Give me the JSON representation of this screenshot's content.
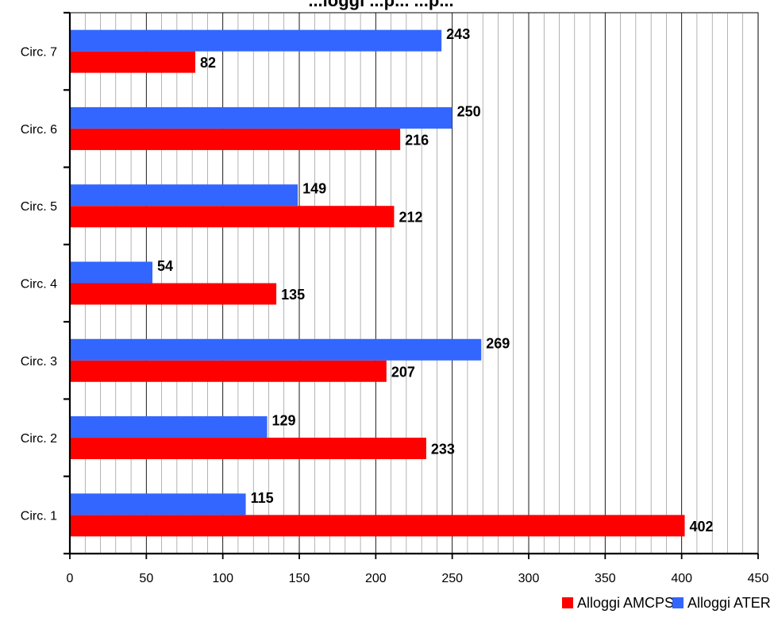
{
  "chart_data": {
    "type": "bar",
    "orientation": "horizontal",
    "title": "...loggi ...p... ...p...",
    "categories": [
      "Circ. 1",
      "Circ. 2",
      "Circ. 3",
      "Circ. 4",
      "Circ. 5",
      "Circ. 6",
      "Circ. 7"
    ],
    "series": [
      {
        "name": "Alloggi AMCPS",
        "color": "#ff0000",
        "values": [
          402,
          233,
          207,
          135,
          212,
          216,
          82
        ]
      },
      {
        "name": "Alloggi ATER",
        "color": "#3366ff",
        "values": [
          115,
          129,
          269,
          54,
          149,
          250,
          243
        ]
      }
    ],
    "xlim": [
      0,
      450
    ],
    "x_ticks": [
      0,
      50,
      100,
      150,
      200,
      250,
      300,
      350,
      400,
      450
    ],
    "x_tick_labels": [
      "0",
      "50",
      "100",
      "150",
      "200",
      "250",
      "300",
      "350",
      "400",
      "450"
    ],
    "grid": true,
    "legend_position": "bottom-right",
    "data_labels": true
  }
}
